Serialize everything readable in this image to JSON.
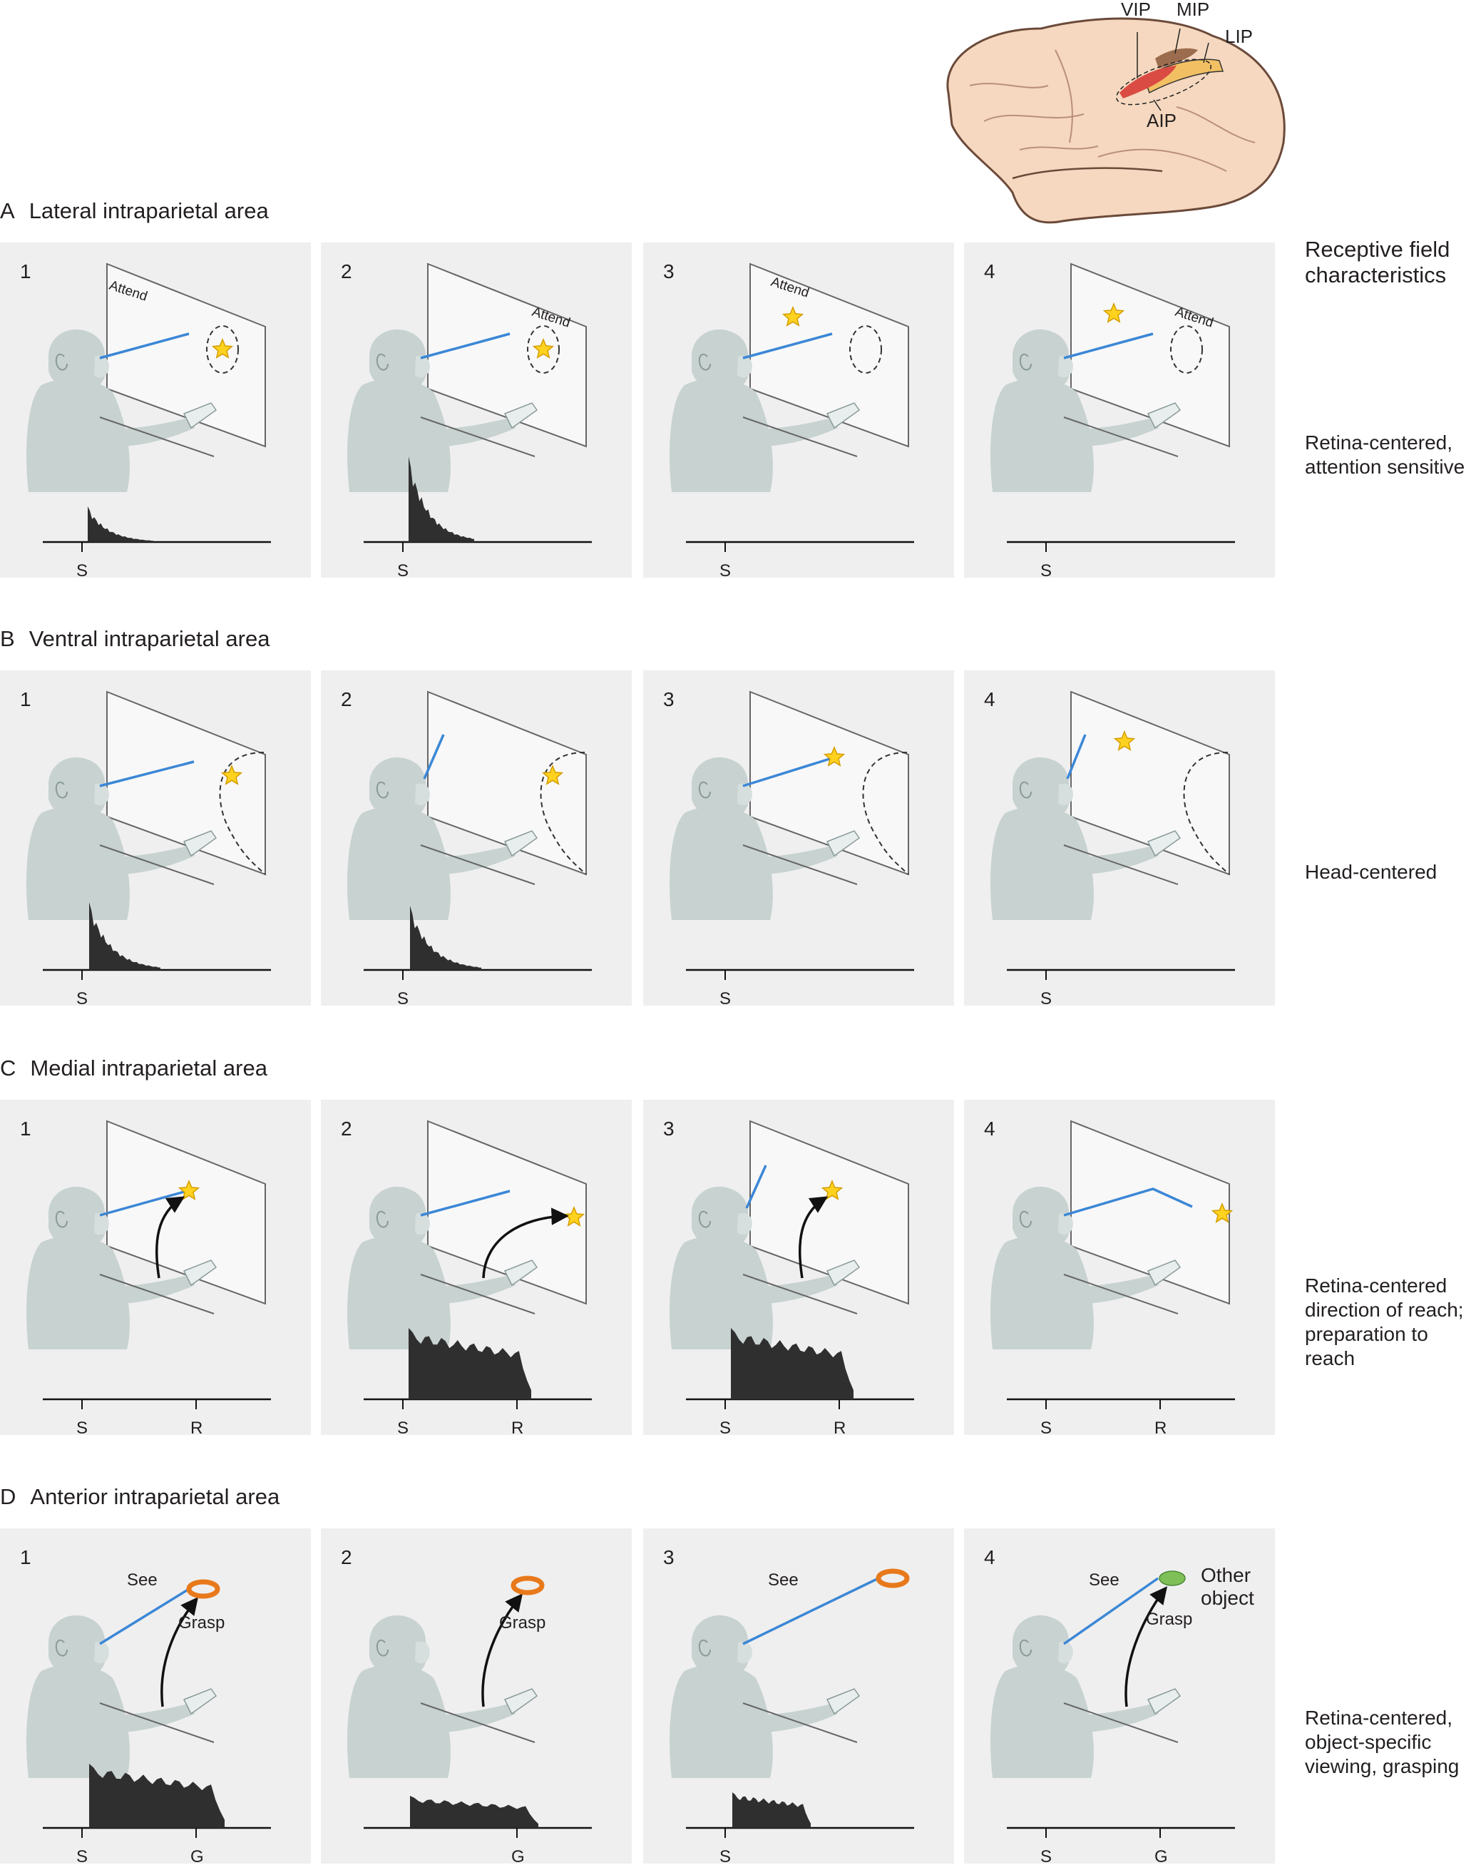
{
  "brain": {
    "labels": {
      "vip": "VIP",
      "mip": "MIP",
      "lip": "LIP",
      "aip": "AIP"
    }
  },
  "right_header": {
    "line1": "Receptive field",
    "line2": "characteristics"
  },
  "colors": {
    "panel_bg": "#efefef",
    "monkey": "#c7d2d1",
    "gaze_line": "#3b87d6",
    "star": "#ffd21f",
    "ring": "#e8791b",
    "other_object": "#7fbf58",
    "histogram": "#2f2f2f",
    "brain": "#f5d8bf",
    "vip": "#d94b43",
    "mip": "#9c6c4f",
    "lip": "#f2c063"
  },
  "rows": [
    {
      "letter": "A",
      "title": "Lateral intraparietal area",
      "characteristics": [
        "Retina-centered,",
        "attention sensitive"
      ],
      "panels": [
        {
          "number": "1",
          "attend_text": "Attend",
          "ticks": [
            "S"
          ]
        },
        {
          "number": "2",
          "attend_text": "Attend",
          "ticks": [
            "S"
          ]
        },
        {
          "number": "3",
          "attend_text": "Attend",
          "ticks": [
            "S"
          ]
        },
        {
          "number": "4",
          "attend_text": "Attend",
          "ticks": [
            "S"
          ]
        }
      ]
    },
    {
      "letter": "B",
      "title": "Ventral intraparietal area",
      "characteristics": [
        "Head-centered"
      ],
      "panels": [
        {
          "number": "1",
          "ticks": [
            "S"
          ]
        },
        {
          "number": "2",
          "ticks": [
            "S"
          ]
        },
        {
          "number": "3",
          "ticks": [
            "S"
          ]
        },
        {
          "number": "4",
          "ticks": [
            "S"
          ]
        }
      ]
    },
    {
      "letter": "C",
      "title": "Medial intraparietal area",
      "characteristics": [
        "Retina-centered",
        "direction of reach;",
        "preparation to",
        "reach"
      ],
      "panels": [
        {
          "number": "1",
          "ticks": [
            "S",
            "R"
          ]
        },
        {
          "number": "2",
          "ticks": [
            "S",
            "R"
          ]
        },
        {
          "number": "3",
          "ticks": [
            "S",
            "R"
          ]
        },
        {
          "number": "4",
          "ticks": [
            "S",
            "R"
          ]
        }
      ]
    },
    {
      "letter": "D",
      "title": "Anterior intraparietal area",
      "characteristics": [
        "Retina-centered,",
        "object-specific",
        "viewing, grasping"
      ],
      "panels": [
        {
          "number": "1",
          "see": "See",
          "grasp": "Grasp",
          "ticks": [
            "S",
            "G"
          ]
        },
        {
          "number": "2",
          "grasp": "Grasp",
          "ticks": [
            "G"
          ]
        },
        {
          "number": "3",
          "see": "See",
          "ticks": [
            "S"
          ]
        },
        {
          "number": "4",
          "see": "See",
          "grasp": "Grasp",
          "object_label": [
            "Other",
            "object"
          ],
          "ticks": [
            "S",
            "G"
          ]
        }
      ]
    }
  ]
}
